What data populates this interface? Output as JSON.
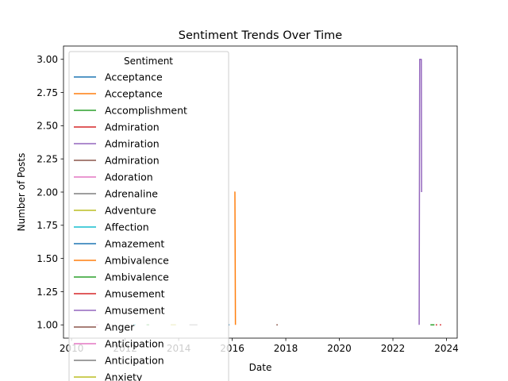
{
  "chart_data": {
    "type": "line",
    "title": "Sentiment Trends Over Time",
    "xlabel": "Date",
    "ylabel": "Number of Posts",
    "xlim": [
      2009.7,
      2024.4
    ],
    "ylim": [
      0.9,
      3.1
    ],
    "x_ticks": [
      2010,
      2012,
      2014,
      2016,
      2018,
      2020,
      2022,
      2024
    ],
    "y_ticks": [
      1.0,
      1.25,
      1.5,
      1.75,
      2.0,
      2.25,
      2.5,
      2.75,
      3.0
    ],
    "y_tick_labels": [
      "1.00",
      "1.25",
      "1.50",
      "1.75",
      "2.00",
      "2.25",
      "2.50",
      "2.75",
      "3.00"
    ],
    "grid": false,
    "legend": {
      "title": "Sentiment",
      "placement": "upper-left",
      "entries": [
        {
          "label": " Acceptance",
          "color": "#1f77b4"
        },
        {
          "label": " Acceptance",
          "color": "#ff7f0e"
        },
        {
          "label": " Accomplishment",
          "color": "#2ca02c"
        },
        {
          "label": " Admiration",
          "color": "#d62728"
        },
        {
          "label": " Admiration",
          "color": "#9467bd"
        },
        {
          "label": " Admiration",
          "color": "#8c564b"
        },
        {
          "label": " Adoration",
          "color": "#e377c2"
        },
        {
          "label": " Adrenaline",
          "color": "#7f7f7f"
        },
        {
          "label": " Adventure",
          "color": "#bcbd22"
        },
        {
          "label": " Affection",
          "color": "#17becf"
        },
        {
          "label": " Amazement",
          "color": "#1f77b4"
        },
        {
          "label": " Ambivalence",
          "color": "#ff7f0e"
        },
        {
          "label": " Ambivalence",
          "color": "#2ca02c"
        },
        {
          "label": " Amusement",
          "color": "#d62728"
        },
        {
          "label": " Amusement",
          "color": "#9467bd"
        },
        {
          "label": " Anger",
          "color": "#8c564b"
        },
        {
          "label": " Anticipation",
          "color": "#e377c2"
        },
        {
          "label": " Anticipation",
          "color": "#7f7f7f"
        },
        {
          "label": " Anxiety",
          "color": "#bcbd22"
        }
      ]
    },
    "series": [
      {
        "color": "#ff7f0e",
        "x": [
          2016.08,
          2016.1,
          2016.12
        ],
        "y": [
          2,
          2,
          1
        ]
      },
      {
        "color": "#9467bd",
        "x": [
          2022.98,
          2023.0,
          2023.04,
          2023.06,
          2023.07
        ],
        "y": [
          1,
          3,
          3,
          3,
          2
        ]
      },
      {
        "color": "#1f77b4",
        "x": [
          2015.85,
          2015.9
        ],
        "y": [
          1,
          1
        ]
      },
      {
        "color": "#8c564b",
        "x": [
          2017.65,
          2017.7
        ],
        "y": [
          1,
          1
        ]
      },
      {
        "color": "#2ca02c",
        "x": [
          2023.4,
          2023.55
        ],
        "y": [
          1,
          1
        ]
      },
      {
        "color": "#d62728",
        "x": [
          2023.6,
          2023.65
        ],
        "y": [
          1,
          1
        ]
      },
      {
        "color": "#d62728",
        "x": [
          2023.75,
          2023.8
        ],
        "y": [
          1,
          1
        ]
      },
      {
        "color": "#e377c2",
        "x": [
          2010.9,
          2011.0
        ],
        "y": [
          1,
          1
        ]
      },
      {
        "color": "#7f7f7f",
        "x": [
          2011.3,
          2011.4
        ],
        "y": [
          1,
          1
        ]
      },
      {
        "color": "#17becf",
        "x": [
          2012.3,
          2012.4
        ],
        "y": [
          1,
          1
        ]
      },
      {
        "color": "#2ca02c",
        "x": [
          2012.8,
          2012.9
        ],
        "y": [
          1,
          1
        ]
      },
      {
        "color": "#bcbd22",
        "x": [
          2013.7,
          2013.9
        ],
        "y": [
          1,
          1
        ]
      },
      {
        "color": "#7f7f7f",
        "x": [
          2014.4,
          2014.7
        ],
        "y": [
          1,
          1
        ]
      }
    ]
  }
}
